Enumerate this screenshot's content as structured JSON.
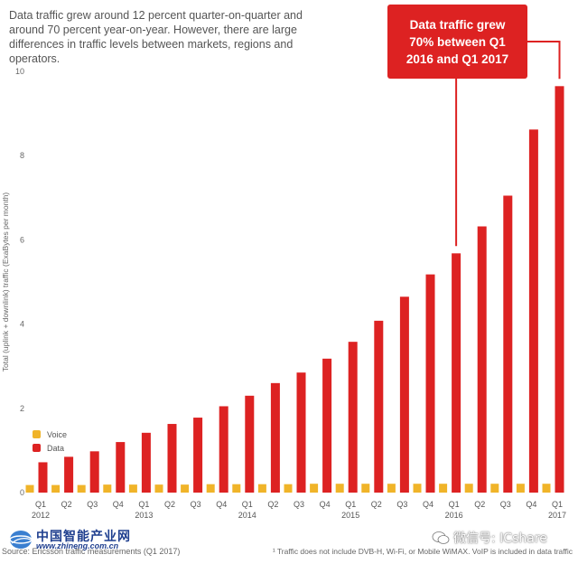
{
  "intro_text": "Data traffic grew around 12 percent quarter-on-quarter and around 70 percent year-on-year. However, there are large differences in traffic levels between markets, regions and operators.",
  "callout_text": "Data traffic grew\n70% between Q1\n2016 and Q1 2017",
  "source_text": "Source: Ericsson traffic measurements (Q1 2017)",
  "footnote_text": "¹ Traffic does not include DVB-H, Wi-Fi, or Mobile WiMAX. VoIP is included in data traffic",
  "watermark_left": {
    "name": "中国智能产业网",
    "url": "www.zhineng.com.cn"
  },
  "watermark_right": "微信号: ICshare",
  "colors": {
    "data": "#dd2222",
    "voice": "#f0b429",
    "callout": "#dd2222",
    "text": "#444444"
  },
  "chart_data": {
    "type": "bar",
    "title": "",
    "xlabel": "",
    "ylabel": "Total (uplink + downlink) traffic (ExaBytes per month)",
    "ylim": [
      0,
      10
    ],
    "yticks": [
      0,
      2,
      4,
      6,
      8,
      10
    ],
    "grid": false,
    "legend_position": "bottom-left",
    "categories": [
      "Q1 2012",
      "Q2",
      "Q3",
      "Q4",
      "Q1 2013",
      "Q2",
      "Q3",
      "Q4",
      "Q1 2014",
      "Q2",
      "Q3",
      "Q4",
      "Q1 2015",
      "Q2",
      "Q3",
      "Q4",
      "Q1 2016",
      "Q2",
      "Q3",
      "Q4",
      "Q1 2017"
    ],
    "tick_labels": [
      [
        "Q1",
        "2012"
      ],
      [
        "Q2",
        ""
      ],
      [
        "Q3",
        ""
      ],
      [
        "Q4",
        ""
      ],
      [
        "Q1",
        "2013"
      ],
      [
        "Q2",
        ""
      ],
      [
        "Q3",
        ""
      ],
      [
        "Q4",
        ""
      ],
      [
        "Q1",
        "2014"
      ],
      [
        "Q2",
        ""
      ],
      [
        "Q3",
        ""
      ],
      [
        "Q4",
        ""
      ],
      [
        "Q1",
        "2015"
      ],
      [
        "Q2",
        ""
      ],
      [
        "Q3",
        ""
      ],
      [
        "Q4",
        ""
      ],
      [
        "Q1",
        "2016"
      ],
      [
        "Q2",
        ""
      ],
      [
        "Q3",
        ""
      ],
      [
        "Q4",
        ""
      ],
      [
        "Q1",
        "2017"
      ]
    ],
    "series": [
      {
        "name": "Voice",
        "color": "#f0b429",
        "values": [
          0.18,
          0.18,
          0.18,
          0.19,
          0.19,
          0.19,
          0.19,
          0.2,
          0.2,
          0.2,
          0.2,
          0.21,
          0.21,
          0.21,
          0.21,
          0.21,
          0.21,
          0.21,
          0.21,
          0.21,
          0.21
        ]
      },
      {
        "name": "Data",
        "color": "#dd2222",
        "values": [
          0.72,
          0.85,
          0.98,
          1.2,
          1.42,
          1.63,
          1.78,
          2.05,
          2.3,
          2.6,
          2.85,
          3.18,
          3.58,
          4.08,
          4.65,
          5.18,
          5.68,
          6.32,
          7.05,
          8.62,
          9.65
        ]
      }
    ]
  }
}
